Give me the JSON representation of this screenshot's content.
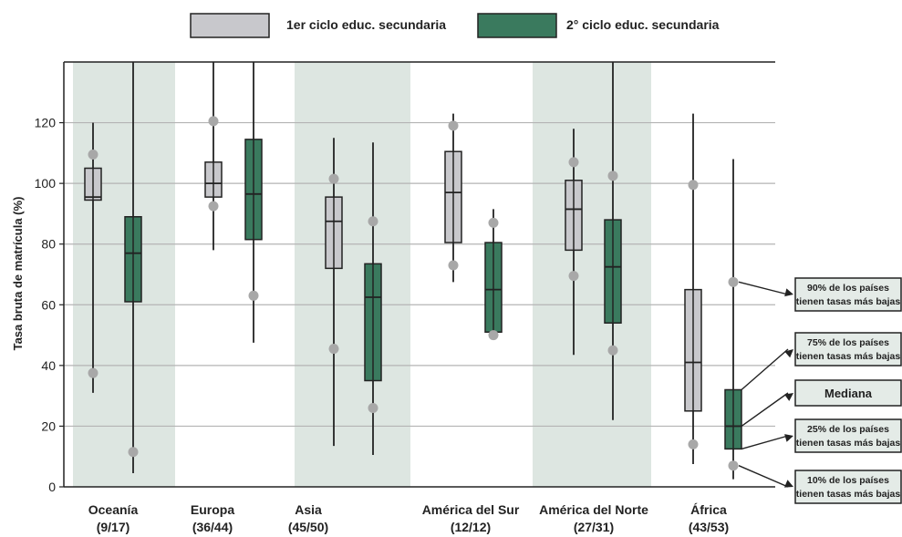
{
  "chart_data": {
    "type": "boxplot",
    "title": "",
    "ylabel": "Tasa bruta de matrícula (%)",
    "ylim": [
      0,
      140
    ],
    "yticks": [
      0,
      20,
      40,
      60,
      80,
      100,
      120
    ],
    "grid": true,
    "legend_position": "top",
    "colors": {
      "series1": "#c8c8cc",
      "series2": "#3a7a5e",
      "band": "#dde6e1",
      "outlier": "#a8a8a8"
    },
    "series": [
      {
        "name": "1er ciclo educ. secundaria"
      },
      {
        "name": "2° ciclo educ. secundaria"
      }
    ],
    "groups": [
      {
        "label": "Oceanía",
        "count": "(9/17)",
        "shaded": true,
        "boxes": [
          {
            "whisker_low": 31,
            "whisker_high": 120,
            "p10": 37.5,
            "q1": 94.5,
            "median": 95.5,
            "q3": 105,
            "p90": 109.5
          },
          {
            "whisker_low": 4.5,
            "whisker_high": 140,
            "p10": 11.5,
            "q1": 61,
            "median": 77,
            "q3": 89,
            "p90": null
          }
        ]
      },
      {
        "label": "Europa",
        "count": "(36/44)",
        "shaded": false,
        "boxes": [
          {
            "whisker_low": 78,
            "whisker_high": 140,
            "p10": 92.5,
            "q1": 95.5,
            "median": 100,
            "q3": 107,
            "p90": 120.5
          },
          {
            "whisker_low": 47.5,
            "whisker_high": 140,
            "p10": 63,
            "q1": 81.5,
            "median": 96.5,
            "q3": 114.5,
            "p90": null
          }
        ]
      },
      {
        "label": "Asia",
        "count": "(45/50)",
        "shaded": true,
        "boxes": [
          {
            "whisker_low": 13.5,
            "whisker_high": 115,
            "p10": 45.5,
            "q1": 72,
            "median": 87.5,
            "q3": 95.5,
            "p90": 101.5
          },
          {
            "whisker_low": 10.5,
            "whisker_high": 113.5,
            "p10": 26,
            "q1": 35,
            "median": 62.5,
            "q3": 73.5,
            "p90": 87.5
          }
        ]
      },
      {
        "label": "América del Sur",
        "count": "(12/12)",
        "shaded": false,
        "boxes": [
          {
            "whisker_low": 67.5,
            "whisker_high": 123,
            "p10": 73,
            "q1": 80.5,
            "median": 97,
            "q3": 110.5,
            "p90": 119
          },
          {
            "whisker_low": 49.5,
            "whisker_high": 91.5,
            "p10": 50,
            "q1": 51,
            "median": 65,
            "q3": 80.5,
            "p90": 87
          }
        ]
      },
      {
        "label": "América del Norte",
        "count": "(27/31)",
        "shaded": true,
        "boxes": [
          {
            "whisker_low": 43.5,
            "whisker_high": 118,
            "p10": 69.5,
            "q1": 78,
            "median": 91.5,
            "q3": 101,
            "p90": 107
          },
          {
            "whisker_low": 22,
            "whisker_high": 140,
            "p10": 45,
            "q1": 54,
            "median": 72.5,
            "q3": 88,
            "p90": 102.5
          }
        ]
      },
      {
        "label": "África",
        "count": "(43/53)",
        "shaded": false,
        "boxes": [
          {
            "whisker_low": 7.5,
            "whisker_high": 123,
            "p10": 14,
            "q1": 25,
            "median": 41,
            "q3": 65,
            "p90": 99.5
          },
          {
            "whisker_low": 2.5,
            "whisker_high": 108,
            "p10": 7,
            "q1": 12.5,
            "median": 20,
            "q3": 32,
            "p90": 67.5
          }
        ]
      }
    ],
    "annotations": [
      {
        "key": "p90",
        "lines": [
          "90% de los países",
          "tienen tasas más bajas"
        ]
      },
      {
        "key": "q3",
        "lines": [
          "75% de los países",
          "tienen tasas más bajas"
        ]
      },
      {
        "key": "median",
        "lines": [
          "Mediana"
        ]
      },
      {
        "key": "q1",
        "lines": [
          "25% de los países",
          "tienen tasas más bajas"
        ]
      },
      {
        "key": "p10",
        "lines": [
          "10% de los países",
          "tienen tasas más bajas"
        ]
      }
    ]
  }
}
